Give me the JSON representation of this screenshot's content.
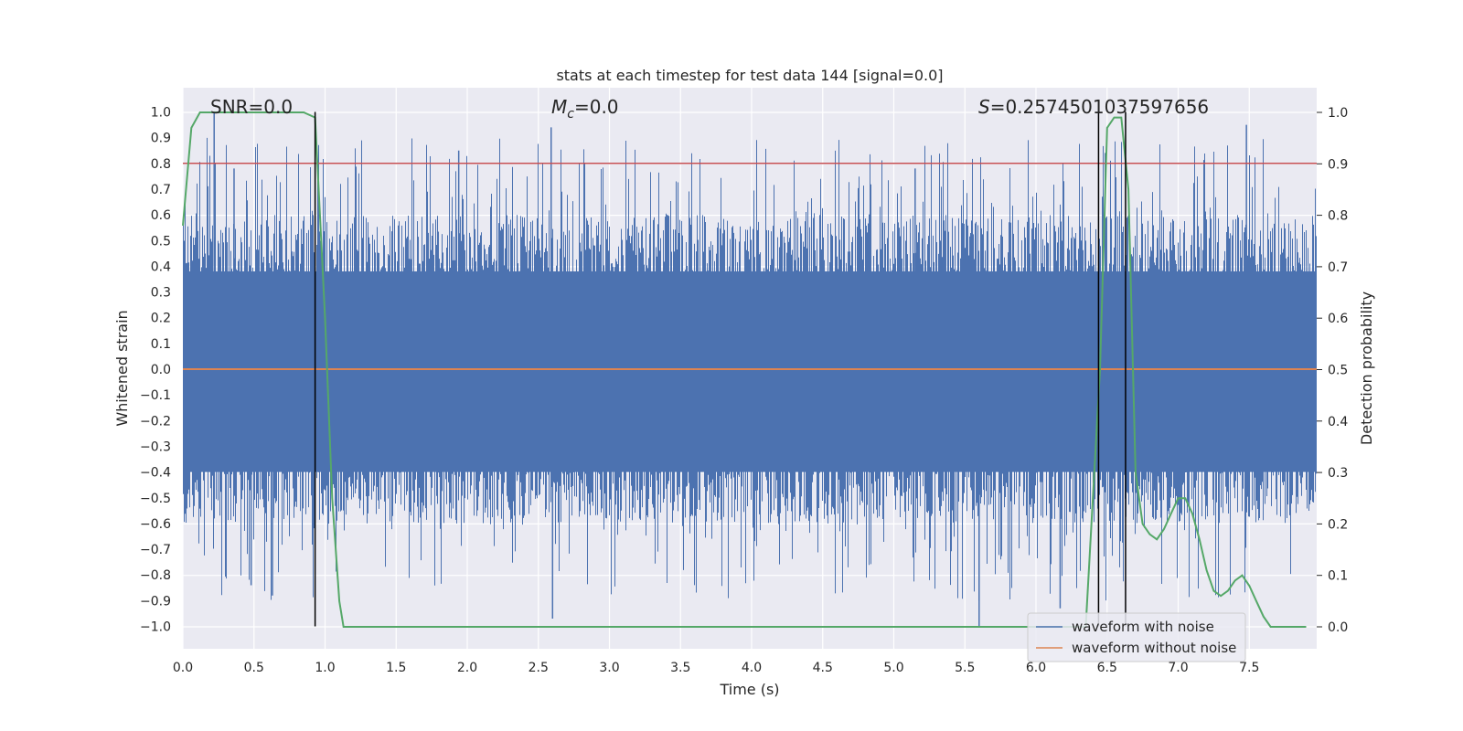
{
  "chart_data": {
    "type": "line",
    "title": "stats at each timestep for test data 144 [signal=0.0]",
    "xlabel": "Time (s)",
    "ylabel": "Whitened strain",
    "y2label": "Detection probability",
    "xlim": [
      0.0,
      8.0
    ],
    "ylim": [
      -1.1,
      1.1
    ],
    "y2lim": [
      -0.05,
      1.05
    ],
    "x_ticks": [
      "0.0",
      "0.5",
      "1.0",
      "1.5",
      "2.0",
      "2.5",
      "3.0",
      "3.5",
      "4.0",
      "4.5",
      "5.0",
      "5.5",
      "6.0",
      "6.5",
      "7.0",
      "7.5"
    ],
    "y_ticks": [
      "1.0",
      "0.9",
      "0.8",
      "0.7",
      "0.6",
      "0.5",
      "0.4",
      "0.3",
      "0.2",
      "0.1",
      "0.0",
      "−0.1",
      "−0.2",
      "−0.3",
      "−0.4",
      "−0.5",
      "−0.6",
      "−0.7",
      "−0.8",
      "−0.9",
      "−1.0"
    ],
    "y2_ticks": [
      "1.0",
      "0.9",
      "0.8",
      "0.7",
      "0.6",
      "0.5",
      "0.4",
      "0.3",
      "0.2",
      "0.1",
      "0.0"
    ],
    "grid": true,
    "legend_position": "bottom-right",
    "annotations": {
      "snr": "SNR=0.0",
      "mc_symbol": "M",
      "mc_sub": "c",
      "mc_value": "=0.0",
      "s_symbol": "S",
      "s_value": "=0.2574501037597656"
    },
    "series": [
      {
        "name": "waveform with noise",
        "color": "#4c72b0",
        "note_peaks_max": 1.0,
        "note_peaks_min": -1.0
      },
      {
        "name": "waveform without noise",
        "color": "#dd8452",
        "values_constant": 0.0
      },
      {
        "color": "#55a868",
        "x": [
          0.0,
          0.06,
          0.12,
          0.2,
          0.3,
          0.5,
          0.7,
          0.85,
          0.93,
          1.0,
          1.05,
          1.1,
          1.13,
          1.2,
          1.4,
          1.6,
          1.8,
          2.0,
          3.0,
          4.0,
          5.0,
          6.0,
          6.35,
          6.45,
          6.5,
          6.55,
          6.6,
          6.65,
          6.7,
          6.75,
          6.8,
          6.85,
          6.9,
          6.95,
          7.0,
          7.05,
          7.1,
          7.15,
          7.2,
          7.25,
          7.3,
          7.35,
          7.4,
          7.45,
          7.5,
          7.55,
          7.6,
          7.65,
          7.7,
          7.8,
          7.9
        ],
        "values": [
          0.78,
          0.97,
          1.0,
          1.0,
          1.0,
          1.0,
          1.0,
          1.0,
          0.99,
          0.6,
          0.25,
          0.05,
          0.0,
          0.0,
          0.0,
          0.0,
          0.0,
          0.0,
          0.0,
          0.0,
          0.0,
          0.0,
          0.0,
          0.5,
          0.97,
          0.99,
          0.99,
          0.85,
          0.3,
          0.2,
          0.18,
          0.17,
          0.19,
          0.22,
          0.25,
          0.25,
          0.22,
          0.17,
          0.11,
          0.07,
          0.06,
          0.07,
          0.09,
          0.1,
          0.08,
          0.05,
          0.02,
          0.0,
          0.0,
          0.0,
          0.0
        ]
      }
    ],
    "threshold_line": {
      "y": 0.8,
      "color": "#c44e52"
    },
    "vertical_markers": [
      0.93,
      6.44,
      6.63
    ]
  }
}
